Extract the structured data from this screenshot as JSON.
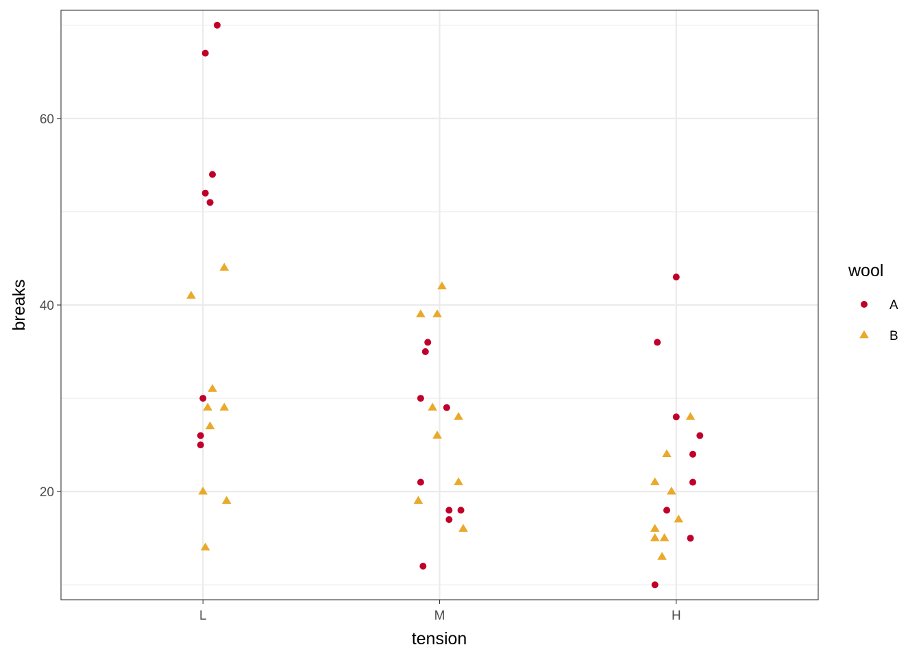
{
  "chart_data": {
    "type": "scatter",
    "xlabel": "tension",
    "ylabel": "breaks",
    "categories": [
      "L",
      "M",
      "H"
    ],
    "ylim": [
      8.4,
      71.6
    ],
    "yticks": [
      20,
      40,
      60
    ],
    "grid": true,
    "legend": {
      "title": "wool",
      "position": "right"
    },
    "series": [
      {
        "name": "A",
        "shape": "circle",
        "color": "#C0002A",
        "points": [
          {
            "x": "L",
            "jitter": 0.06,
            "y": 70
          },
          {
            "x": "L",
            "jitter": 0.01,
            "y": 67
          },
          {
            "x": "L",
            "jitter": 0.04,
            "y": 54
          },
          {
            "x": "L",
            "jitter": 0.01,
            "y": 52
          },
          {
            "x": "L",
            "jitter": 0.03,
            "y": 51
          },
          {
            "x": "L",
            "jitter": 0.0,
            "y": 30
          },
          {
            "x": "L",
            "jitter": -0.01,
            "y": 26
          },
          {
            "x": "L",
            "jitter": -0.01,
            "y": 25
          },
          {
            "x": "M",
            "jitter": -0.06,
            "y": 35
          },
          {
            "x": "M",
            "jitter": -0.05,
            "y": 36
          },
          {
            "x": "M",
            "jitter": -0.08,
            "y": 30
          },
          {
            "x": "M",
            "jitter": 0.03,
            "y": 29
          },
          {
            "x": "M",
            "jitter": -0.08,
            "y": 21
          },
          {
            "x": "M",
            "jitter": 0.04,
            "y": 18
          },
          {
            "x": "M",
            "jitter": 0.09,
            "y": 18
          },
          {
            "x": "M",
            "jitter": 0.04,
            "y": 17
          },
          {
            "x": "M",
            "jitter": -0.07,
            "y": 12
          },
          {
            "x": "H",
            "jitter": 0.0,
            "y": 43
          },
          {
            "x": "H",
            "jitter": -0.08,
            "y": 36
          },
          {
            "x": "H",
            "jitter": 0.0,
            "y": 28
          },
          {
            "x": "H",
            "jitter": 0.1,
            "y": 26
          },
          {
            "x": "H",
            "jitter": 0.07,
            "y": 24
          },
          {
            "x": "H",
            "jitter": 0.07,
            "y": 21
          },
          {
            "x": "H",
            "jitter": -0.04,
            "y": 18
          },
          {
            "x": "H",
            "jitter": 0.06,
            "y": 15
          },
          {
            "x": "H",
            "jitter": -0.09,
            "y": 10
          }
        ]
      },
      {
        "name": "B",
        "shape": "triangle",
        "color": "#E9A92A",
        "points": [
          {
            "x": "L",
            "jitter": 0.09,
            "y": 44
          },
          {
            "x": "L",
            "jitter": -0.05,
            "y": 41
          },
          {
            "x": "L",
            "jitter": 0.04,
            "y": 31
          },
          {
            "x": "L",
            "jitter": 0.02,
            "y": 29
          },
          {
            "x": "L",
            "jitter": 0.09,
            "y": 29
          },
          {
            "x": "L",
            "jitter": 0.03,
            "y": 27
          },
          {
            "x": "L",
            "jitter": 0.0,
            "y": 20
          },
          {
            "x": "L",
            "jitter": 0.1,
            "y": 19
          },
          {
            "x": "L",
            "jitter": 0.01,
            "y": 14
          },
          {
            "x": "M",
            "jitter": 0.01,
            "y": 42
          },
          {
            "x": "M",
            "jitter": -0.08,
            "y": 39
          },
          {
            "x": "M",
            "jitter": -0.01,
            "y": 39
          },
          {
            "x": "M",
            "jitter": -0.03,
            "y": 29
          },
          {
            "x": "M",
            "jitter": 0.08,
            "y": 28
          },
          {
            "x": "M",
            "jitter": -0.01,
            "y": 26
          },
          {
            "x": "M",
            "jitter": 0.08,
            "y": 21
          },
          {
            "x": "M",
            "jitter": -0.09,
            "y": 19
          },
          {
            "x": "M",
            "jitter": 0.1,
            "y": 16
          },
          {
            "x": "H",
            "jitter": 0.06,
            "y": 28
          },
          {
            "x": "H",
            "jitter": -0.04,
            "y": 24
          },
          {
            "x": "H",
            "jitter": -0.09,
            "y": 21
          },
          {
            "x": "H",
            "jitter": -0.02,
            "y": 20
          },
          {
            "x": "H",
            "jitter": 0.01,
            "y": 17
          },
          {
            "x": "H",
            "jitter": -0.09,
            "y": 16
          },
          {
            "x": "H",
            "jitter": -0.09,
            "y": 15
          },
          {
            "x": "H",
            "jitter": -0.05,
            "y": 15
          },
          {
            "x": "H",
            "jitter": -0.06,
            "y": 13
          }
        ]
      }
    ]
  }
}
